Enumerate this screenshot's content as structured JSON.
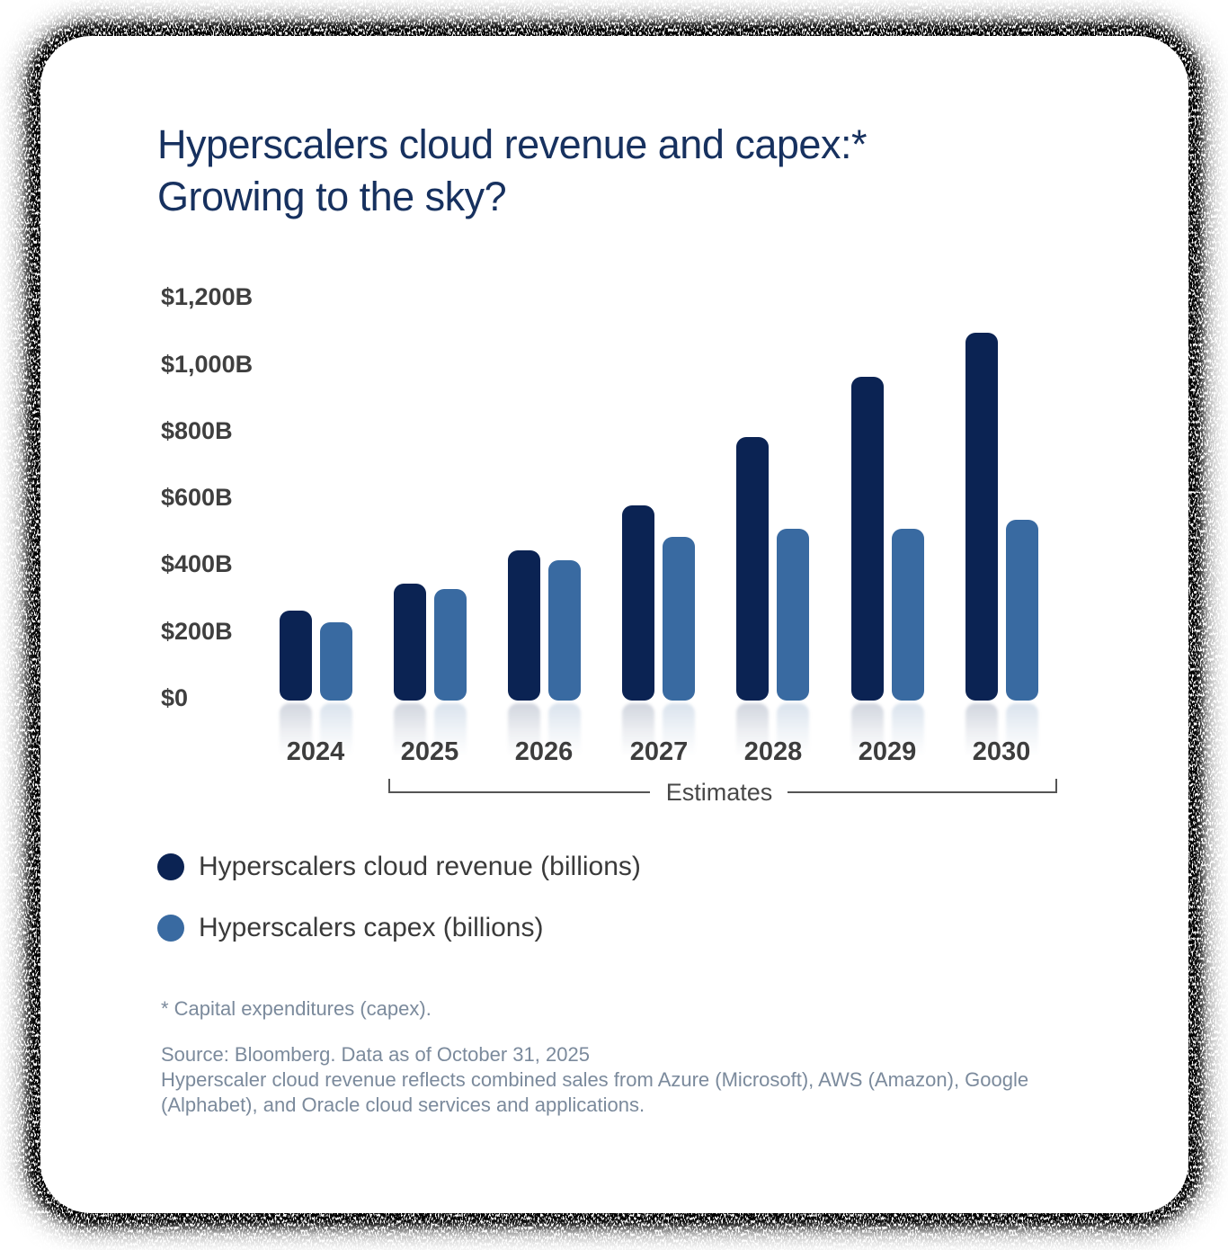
{
  "title": {
    "line1": "Hyperscalers cloud revenue and capex:*",
    "line2": "Growing to the sky?"
  },
  "chart_data": {
    "type": "bar",
    "title": "Hyperscalers cloud revenue and capex:* Growing to the sky?",
    "categories": [
      "2024",
      "2025",
      "2026",
      "2027",
      "2028",
      "2029",
      "2030"
    ],
    "series": [
      {
        "name": "Hyperscalers cloud revenue (billions)",
        "color": "#0b2353",
        "values": [
          270,
          350,
          450,
          585,
          790,
          970,
          1100
        ]
      },
      {
        "name": "Hyperscalers capex (billions)",
        "color": "#396aa1",
        "values": [
          235,
          335,
          420,
          490,
          515,
          515,
          540
        ]
      }
    ],
    "ylim": [
      0,
      1200
    ],
    "ytick_labels": [
      "$0",
      "$200B",
      "$400B",
      "$600B",
      "$800B",
      "$1,000B",
      "$1,200B"
    ],
    "ytick_values": [
      0,
      200,
      400,
      600,
      800,
      1000,
      1200
    ],
    "grid": false,
    "legend_position": "bottom-left",
    "estimates": {
      "label": "Estimates",
      "categories": [
        "2025",
        "2026",
        "2027",
        "2028",
        "2029",
        "2030"
      ]
    }
  },
  "footnotes": {
    "capex_note": "* Capital expenditures (capex).",
    "source_line": "Source: Bloomberg. Data as of October 31, 2025",
    "desc_line1": "Hyperscaler cloud revenue reflects combined sales from Azure (Microsoft), AWS (Amazon), Google",
    "desc_line2": "(Alphabet), and Oracle cloud services and applications."
  }
}
